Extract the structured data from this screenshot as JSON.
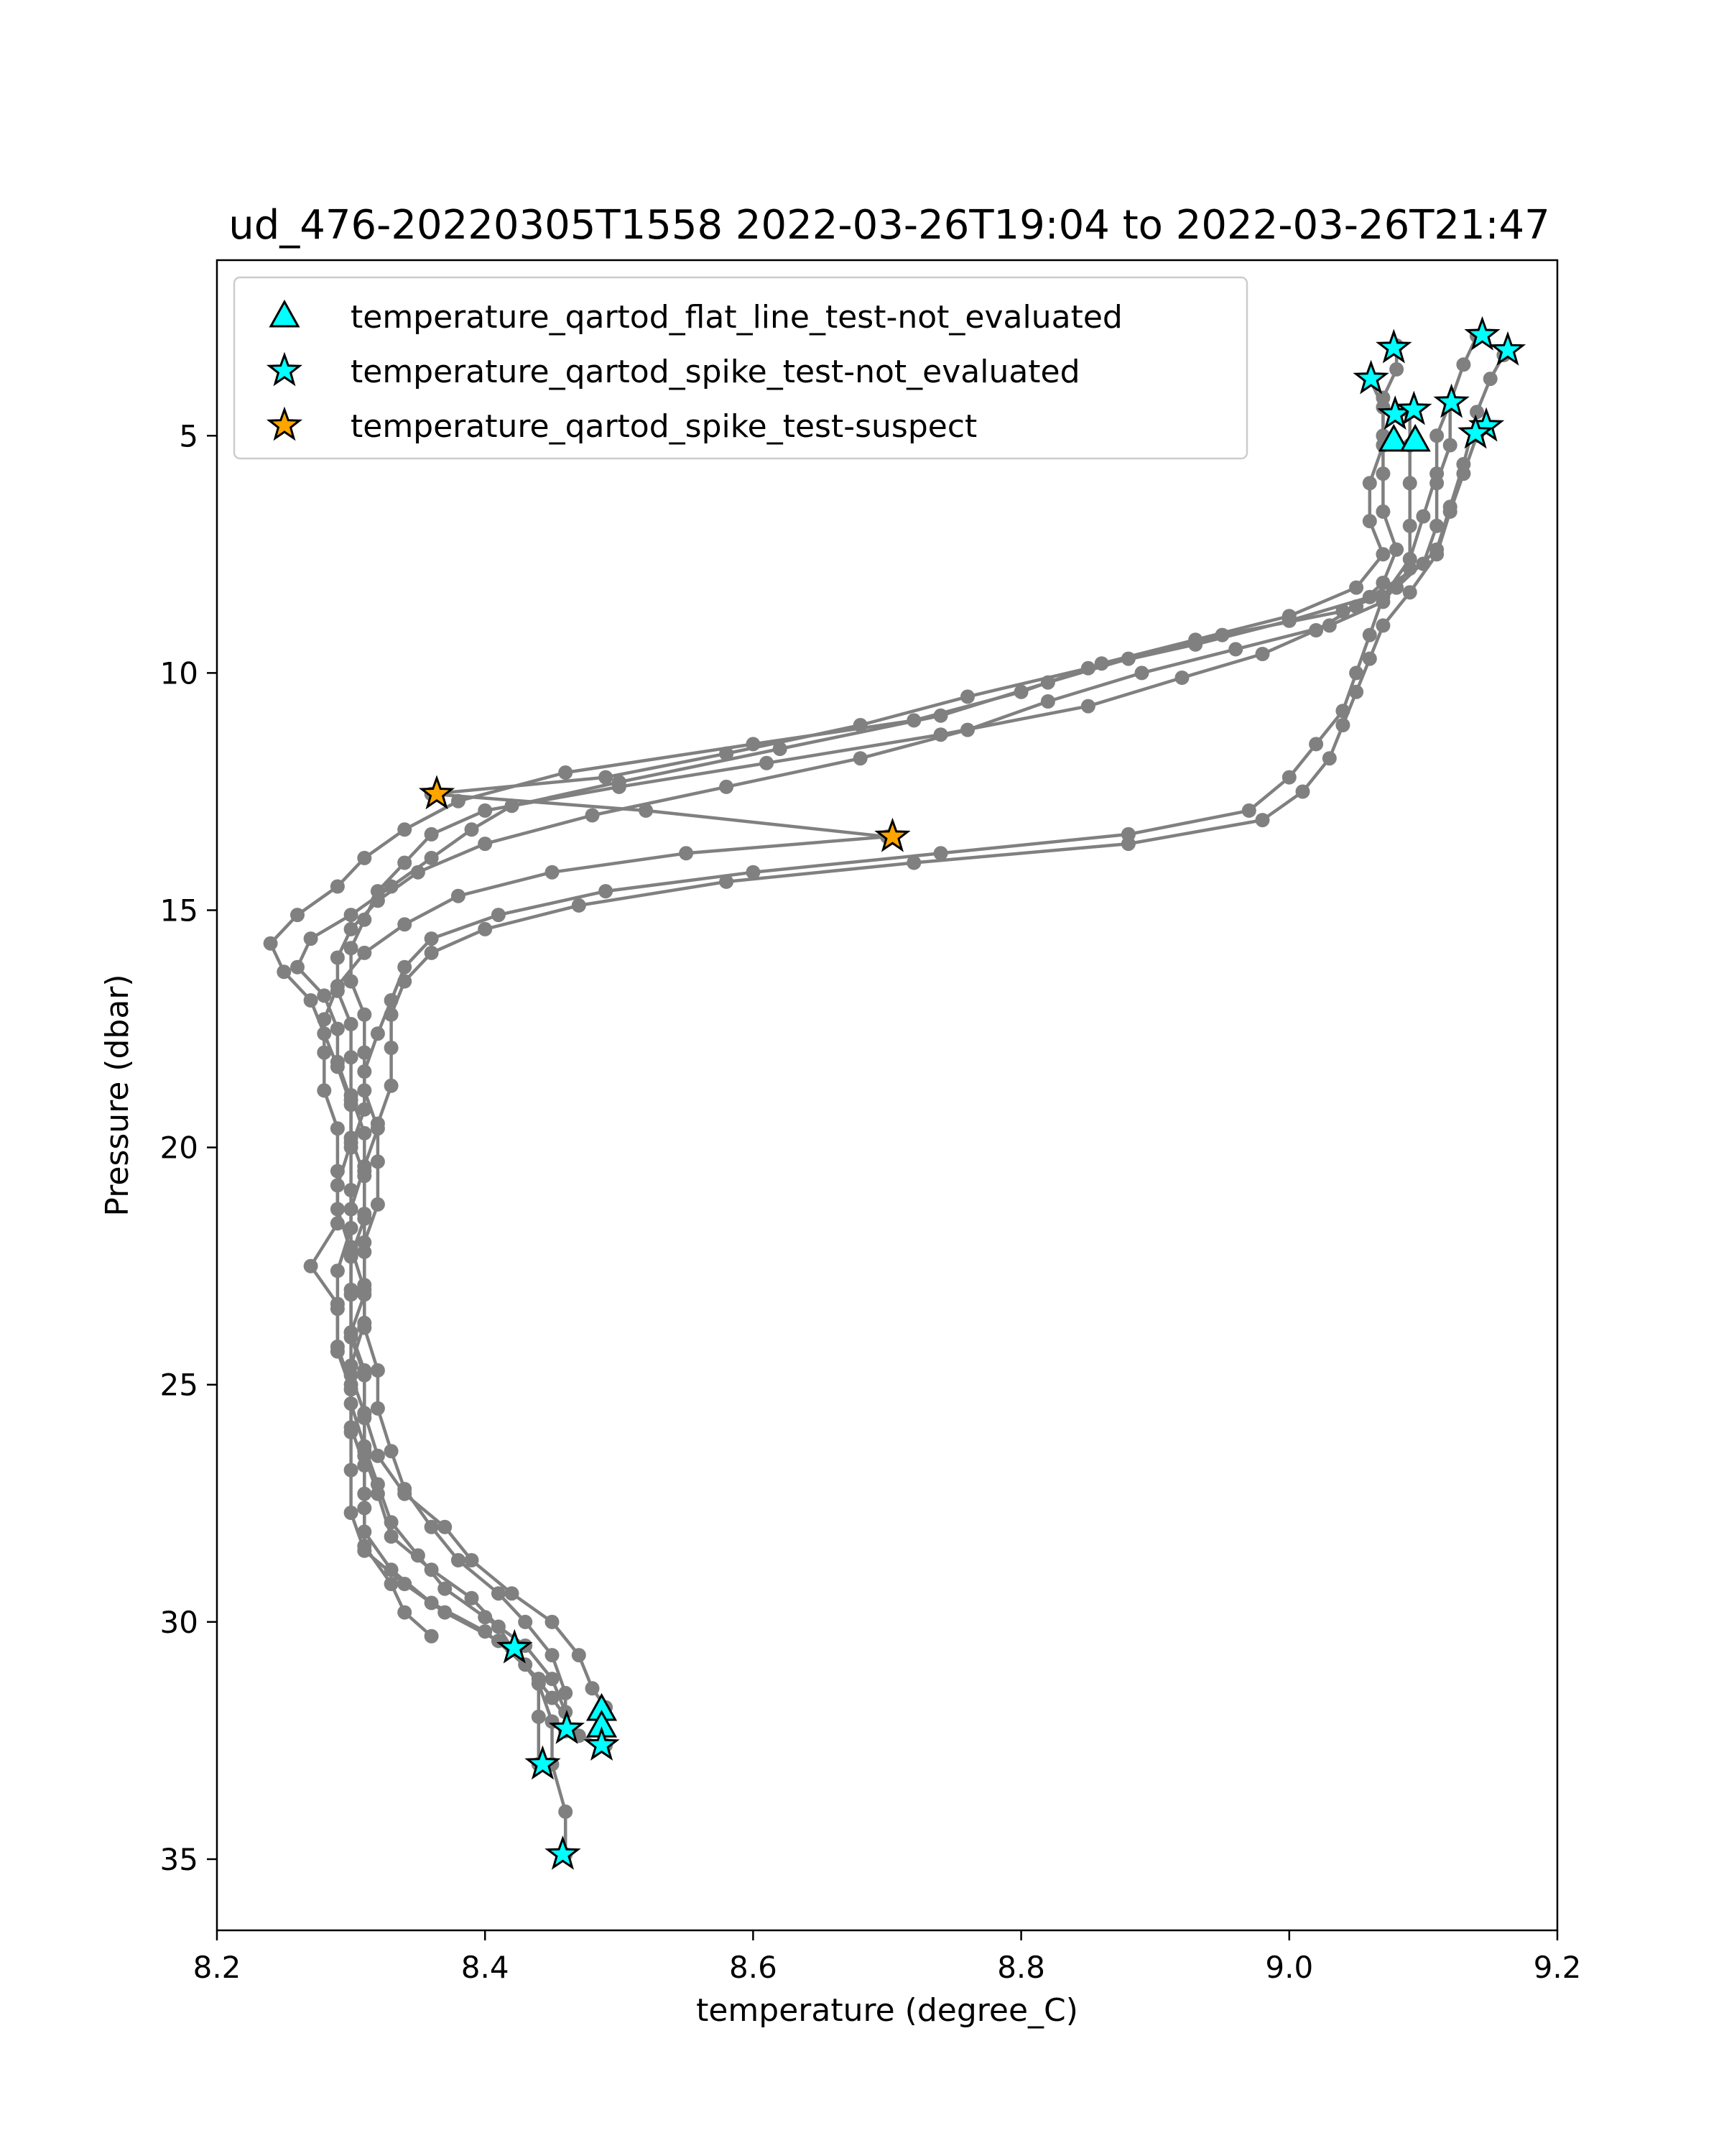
{
  "chart_data": {
    "type": "scatter",
    "title": "ud_476-20220305T1558 2022-03-26T19:04 to 2022-03-26T21:47",
    "xlabel": "temperature (degree_C)",
    "ylabel": "Pressure (dbar)",
    "xlim": [
      8.2,
      9.2
    ],
    "ylim": [
      36.5,
      1.3
    ],
    "y_inverted": true,
    "xticks": [
      "8.2",
      "8.4",
      "8.6",
      "8.8",
      "9.0",
      "9.2"
    ],
    "xtick_values": [
      8.2,
      8.4,
      8.6,
      8.8,
      9.0,
      9.2
    ],
    "yticks": [
      "5",
      "10",
      "15",
      "20",
      "25",
      "30",
      "35"
    ],
    "ytick_values": [
      5,
      10,
      15,
      20,
      25,
      30,
      35
    ],
    "grid": false,
    "legend_position": "top-left",
    "profile_color": "#808080",
    "profiles": [
      [
        [
          9.16,
          3.3
        ],
        [
          9.15,
          3.8
        ],
        [
          9.14,
          4.5
        ],
        [
          9.13,
          5.6
        ],
        [
          9.12,
          6.5
        ],
        [
          9.11,
          7.4
        ],
        [
          9.08,
          8.2
        ],
        [
          9.04,
          8.7
        ],
        [
          8.95,
          9.2
        ],
        [
          8.88,
          9.7
        ],
        [
          8.82,
          10.2
        ],
        [
          8.74,
          10.9
        ],
        [
          8.62,
          11.6
        ],
        [
          8.5,
          12.3
        ],
        [
          8.42,
          12.8
        ],
        [
          8.39,
          13.3
        ],
        [
          8.36,
          13.9
        ],
        [
          8.33,
          14.5
        ],
        [
          8.3,
          15.1
        ],
        [
          8.27,
          15.6
        ],
        [
          8.26,
          16.2
        ],
        [
          8.28,
          16.8
        ],
        [
          8.29,
          17.5
        ],
        [
          8.29,
          18.2
        ],
        [
          8.3,
          19.0
        ],
        [
          8.3,
          19.8
        ],
        [
          8.31,
          20.6
        ],
        [
          8.31,
          21.5
        ],
        [
          8.3,
          22.3
        ],
        [
          8.3,
          23.1
        ],
        [
          8.3,
          24.0
        ],
        [
          8.31,
          24.8
        ],
        [
          8.31,
          25.7
        ],
        [
          8.31,
          26.5
        ],
        [
          8.32,
          27.3
        ],
        [
          8.33,
          28.2
        ],
        [
          8.36,
          28.9
        ],
        [
          8.39,
          29.5
        ],
        [
          8.41,
          30.1
        ],
        [
          8.42,
          30.55
        ],
        [
          8.44,
          31.3
        ],
        [
          8.45,
          32.1
        ],
        [
          8.45,
          33.0
        ],
        [
          8.46,
          34.0
        ],
        [
          8.46,
          34.9
        ]
      ],
      [
        [
          9.08,
          3.1
        ],
        [
          9.08,
          3.6
        ],
        [
          9.07,
          4.2
        ],
        [
          9.07,
          5.0
        ],
        [
          9.07,
          5.8
        ],
        [
          9.07,
          6.6
        ],
        [
          9.08,
          7.4
        ],
        [
          9.07,
          8.1
        ],
        [
          9.05,
          8.6
        ],
        [
          9.02,
          9.1
        ],
        [
          8.98,
          9.6
        ],
        [
          8.92,
          10.1
        ],
        [
          8.85,
          10.7
        ],
        [
          8.74,
          11.3
        ],
        [
          8.61,
          11.9
        ],
        [
          8.5,
          12.4
        ],
        [
          8.4,
          12.9
        ],
        [
          8.36,
          13.4
        ],
        [
          8.34,
          14.0
        ],
        [
          8.32,
          14.6
        ],
        [
          8.31,
          15.2
        ],
        [
          8.3,
          15.8
        ],
        [
          8.3,
          16.5
        ],
        [
          8.31,
          17.2
        ],
        [
          8.31,
          18.0
        ],
        [
          8.31,
          18.8
        ],
        [
          8.32,
          19.6
        ],
        [
          8.31,
          20.4
        ],
        [
          8.3,
          21.3
        ],
        [
          8.3,
          22.1
        ],
        [
          8.31,
          23.0
        ],
        [
          8.31,
          23.8
        ],
        [
          8.32,
          24.7
        ],
        [
          8.32,
          25.5
        ],
        [
          8.33,
          26.4
        ],
        [
          8.34,
          27.2
        ],
        [
          8.36,
          28.0
        ],
        [
          8.38,
          28.7
        ],
        [
          8.41,
          29.4
        ],
        [
          8.43,
          30.0
        ],
        [
          8.45,
          30.7
        ],
        [
          8.46,
          31.5
        ],
        [
          8.46,
          32.3
        ]
      ],
      [
        [
          9.14,
          2.9
        ],
        [
          9.13,
          3.5
        ],
        [
          9.12,
          4.3
        ],
        [
          9.12,
          5.2
        ],
        [
          9.11,
          6.0
        ],
        [
          9.11,
          6.9
        ],
        [
          9.1,
          7.7
        ],
        [
          9.06,
          8.4
        ],
        [
          9.0,
          8.9
        ],
        [
          8.93,
          9.4
        ],
        [
          8.85,
          9.9
        ],
        [
          8.76,
          10.5
        ],
        [
          8.68,
          11.1
        ],
        [
          8.58,
          11.7
        ],
        [
          8.49,
          12.2
        ],
        [
          8.36,
          12.55
        ],
        [
          8.52,
          12.9
        ],
        [
          8.7,
          13.45
        ],
        [
          8.55,
          13.8
        ],
        [
          8.45,
          14.2
        ],
        [
          8.38,
          14.7
        ],
        [
          8.34,
          15.3
        ],
        [
          8.31,
          15.9
        ],
        [
          8.29,
          16.6
        ],
        [
          8.28,
          17.3
        ],
        [
          8.28,
          18.0
        ],
        [
          8.28,
          18.8
        ],
        [
          8.29,
          19.6
        ],
        [
          8.29,
          20.5
        ],
        [
          8.29,
          21.3
        ],
        [
          8.3,
          22.2
        ],
        [
          8.3,
          23.0
        ],
        [
          8.3,
          23.9
        ],
        [
          8.31,
          24.7
        ],
        [
          8.31,
          25.6
        ],
        [
          8.31,
          26.4
        ],
        [
          8.31,
          27.3
        ],
        [
          8.31,
          28.1
        ],
        [
          8.33,
          28.9
        ],
        [
          8.36,
          29.6
        ],
        [
          8.4,
          30.2
        ],
        [
          8.43,
          30.9
        ],
        [
          8.45,
          31.6
        ],
        [
          8.47,
          32.4
        ],
        [
          8.49,
          32.6
        ]
      ],
      [
        [
          9.06,
          3.8
        ],
        [
          9.07,
          4.4
        ],
        [
          9.07,
          5.2
        ],
        [
          9.06,
          6.0
        ],
        [
          9.06,
          6.8
        ],
        [
          9.07,
          7.5
        ],
        [
          9.05,
          8.2
        ],
        [
          9.0,
          8.8
        ],
        [
          8.93,
          9.3
        ],
        [
          8.86,
          9.8
        ],
        [
          8.8,
          10.4
        ],
        [
          8.72,
          11.0
        ],
        [
          8.6,
          11.5
        ],
        [
          8.46,
          12.1
        ],
        [
          8.38,
          12.7
        ],
        [
          8.34,
          13.3
        ],
        [
          8.31,
          13.9
        ],
        [
          8.29,
          14.5
        ],
        [
          8.26,
          15.1
        ],
        [
          8.24,
          15.7
        ],
        [
          8.25,
          16.3
        ],
        [
          8.27,
          16.9
        ],
        [
          8.28,
          17.6
        ],
        [
          8.29,
          18.3
        ],
        [
          8.3,
          19.1
        ],
        [
          8.3,
          19.9
        ],
        [
          8.29,
          20.8
        ],
        [
          8.29,
          21.6
        ],
        [
          8.27,
          22.5
        ],
        [
          8.29,
          23.3
        ],
        [
          8.29,
          24.2
        ],
        [
          8.3,
          25.0
        ],
        [
          8.3,
          25.9
        ],
        [
          8.31,
          26.7
        ],
        [
          8.31,
          27.6
        ],
        [
          8.31,
          28.4
        ],
        [
          8.33,
          29.2
        ],
        [
          8.34,
          29.8
        ],
        [
          8.36,
          30.3
        ]
      ],
      [
        [
          9.09,
          4.5
        ],
        [
          9.09,
          5.2
        ],
        [
          9.09,
          6.0
        ],
        [
          9.09,
          6.9
        ],
        [
          9.09,
          7.8
        ],
        [
          9.07,
          8.5
        ],
        [
          9.03,
          9.0
        ],
        [
          8.96,
          9.5
        ],
        [
          8.89,
          10.0
        ],
        [
          8.82,
          10.6
        ],
        [
          8.76,
          11.2
        ],
        [
          8.68,
          11.8
        ],
        [
          8.58,
          12.4
        ],
        [
          8.48,
          13.0
        ],
        [
          8.4,
          13.6
        ],
        [
          8.35,
          14.2
        ],
        [
          8.32,
          14.8
        ],
        [
          8.3,
          15.4
        ],
        [
          8.29,
          16.0
        ],
        [
          8.29,
          16.7
        ],
        [
          8.3,
          17.4
        ],
        [
          8.3,
          18.1
        ],
        [
          8.3,
          18.9
        ],
        [
          8.31,
          19.7
        ],
        [
          8.31,
          20.5
        ],
        [
          8.31,
          21.4
        ],
        [
          8.31,
          22.2
        ],
        [
          8.31,
          23.1
        ],
        [
          8.3,
          23.9
        ],
        [
          8.3,
          24.8
        ],
        [
          8.31,
          25.6
        ],
        [
          8.32,
          26.5
        ],
        [
          8.34,
          27.3
        ],
        [
          8.37,
          28.0
        ],
        [
          8.39,
          28.7
        ],
        [
          8.42,
          29.4
        ],
        [
          8.45,
          30.0
        ],
        [
          8.47,
          30.7
        ],
        [
          8.48,
          31.4
        ],
        [
          8.49,
          31.8
        ]
      ],
      [
        [
          9.14,
          5.0
        ],
        [
          9.13,
          5.8
        ],
        [
          9.12,
          6.6
        ],
        [
          9.11,
          7.5
        ],
        [
          9.09,
          8.3
        ],
        [
          9.07,
          9.0
        ],
        [
          9.06,
          9.7
        ],
        [
          9.05,
          10.4
        ],
        [
          9.04,
          11.1
        ],
        [
          9.03,
          11.8
        ],
        [
          9.01,
          12.5
        ],
        [
          8.98,
          13.1
        ],
        [
          8.88,
          13.6
        ],
        [
          8.72,
          14.0
        ],
        [
          8.58,
          14.4
        ],
        [
          8.47,
          14.9
        ],
        [
          8.4,
          15.4
        ],
        [
          8.36,
          15.9
        ],
        [
          8.34,
          16.5
        ],
        [
          8.33,
          17.2
        ],
        [
          8.33,
          17.9
        ],
        [
          8.33,
          18.7
        ],
        [
          8.32,
          19.5
        ],
        [
          8.32,
          20.3
        ],
        [
          8.32,
          21.2
        ],
        [
          8.31,
          22.0
        ],
        [
          8.31,
          22.9
        ],
        [
          8.31,
          23.7
        ],
        [
          8.3,
          24.6
        ],
        [
          8.3,
          25.4
        ],
        [
          8.31,
          26.3
        ],
        [
          8.32,
          27.1
        ],
        [
          8.33,
          27.9
        ],
        [
          8.35,
          28.6
        ],
        [
          8.37,
          29.3
        ],
        [
          8.4,
          29.9
        ],
        [
          8.43,
          30.5
        ],
        [
          8.45,
          31.2
        ],
        [
          8.46,
          31.9
        ],
        [
          8.46,
          32.3
        ]
      ],
      [
        [
          9.12,
          4.3
        ],
        [
          9.11,
          5.0
        ],
        [
          9.11,
          5.8
        ],
        [
          9.1,
          6.7
        ],
        [
          9.09,
          7.6
        ],
        [
          9.07,
          8.4
        ],
        [
          9.06,
          9.2
        ],
        [
          9.05,
          10.0
        ],
        [
          9.04,
          10.8
        ],
        [
          9.02,
          11.5
        ],
        [
          9.0,
          12.2
        ],
        [
          8.97,
          12.9
        ],
        [
          8.88,
          13.4
        ],
        [
          8.74,
          13.8
        ],
        [
          8.6,
          14.2
        ],
        [
          8.49,
          14.6
        ],
        [
          8.41,
          15.1
        ],
        [
          8.36,
          15.6
        ],
        [
          8.34,
          16.2
        ],
        [
          8.33,
          16.9
        ],
        [
          8.32,
          17.6
        ],
        [
          8.31,
          18.4
        ],
        [
          8.31,
          19.2
        ],
        [
          8.3,
          20.0
        ],
        [
          8.3,
          20.9
        ],
        [
          8.3,
          21.7
        ],
        [
          8.29,
          22.6
        ],
        [
          8.29,
          23.4
        ],
        [
          8.29,
          24.3
        ],
        [
          8.3,
          25.1
        ],
        [
          8.3,
          26.0
        ],
        [
          8.3,
          26.8
        ],
        [
          8.3,
          27.7
        ],
        [
          8.31,
          28.5
        ],
        [
          8.34,
          29.2
        ],
        [
          8.37,
          29.8
        ],
        [
          8.41,
          30.4
        ],
        [
          8.44,
          31.2
        ],
        [
          8.44,
          32.0
        ],
        [
          8.44,
          33.0
        ]
      ]
    ],
    "series": [
      {
        "name": "temperature_qartod_flat_line_test-not_evaluated",
        "marker": "triangle",
        "color": "#00ffff",
        "points": [
          [
            9.078,
            5.1
          ],
          [
            9.094,
            5.1
          ],
          [
            8.487,
            31.85
          ],
          [
            8.487,
            32.2
          ]
        ]
      },
      {
        "name": "temperature_qartod_spike_test-not_evaluated",
        "marker": "star",
        "color": "#00ffff",
        "points": [
          [
            9.078,
            3.15
          ],
          [
            9.144,
            2.88
          ],
          [
            9.163,
            3.2
          ],
          [
            9.061,
            3.8
          ],
          [
            9.079,
            4.55
          ],
          [
            9.093,
            4.45
          ],
          [
            9.121,
            4.3
          ],
          [
            9.147,
            4.8
          ],
          [
            9.139,
            4.95
          ],
          [
            8.422,
            30.55
          ],
          [
            8.461,
            32.25
          ],
          [
            8.443,
            33.0
          ],
          [
            8.487,
            32.6
          ],
          [
            8.458,
            34.9
          ]
        ]
      },
      {
        "name": "temperature_qartod_spike_test-suspect",
        "marker": "star",
        "color": "#ffa500",
        "points": [
          [
            8.364,
            12.55
          ],
          [
            8.704,
            13.45
          ]
        ]
      }
    ]
  }
}
